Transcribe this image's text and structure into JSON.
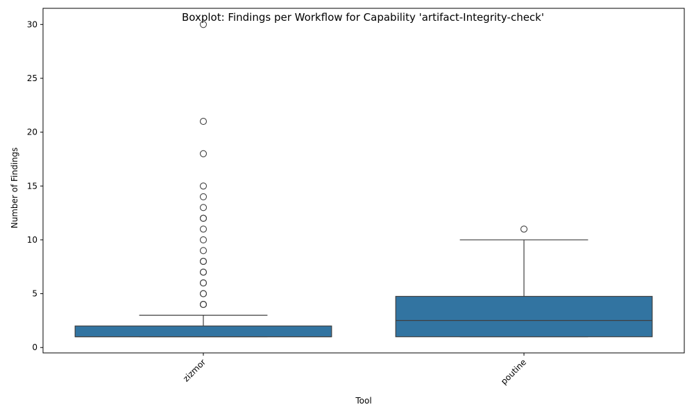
{
  "chart_data": {
    "type": "boxplot",
    "title": "Boxplot: Findings per Workflow for Capability 'artifact-Integrity-check'",
    "xlabel": "Tool",
    "ylabel": "Number of Findings",
    "ylim": [
      -0.5,
      31.5
    ],
    "yticks": [
      0,
      5,
      10,
      15,
      20,
      25,
      30
    ],
    "grid": false,
    "box_color": "#3274a1",
    "line_color": "#3f3f3f",
    "categories": [
      "zizmor",
      "poutine"
    ],
    "series": [
      {
        "category": "zizmor",
        "whisker_low": 1,
        "q1": 1,
        "median": 1,
        "q3": 2,
        "whisker_high": 3,
        "outliers": [
          4,
          4,
          4,
          5,
          5,
          6,
          6,
          7,
          7,
          8,
          8,
          9,
          10,
          11,
          12,
          12,
          13,
          14,
          15,
          18,
          21,
          30
        ]
      },
      {
        "category": "poutine",
        "whisker_low": 1,
        "q1": 1,
        "median": 2.5,
        "q3": 4.75,
        "whisker_high": 10,
        "outliers": [
          11
        ]
      }
    ]
  }
}
